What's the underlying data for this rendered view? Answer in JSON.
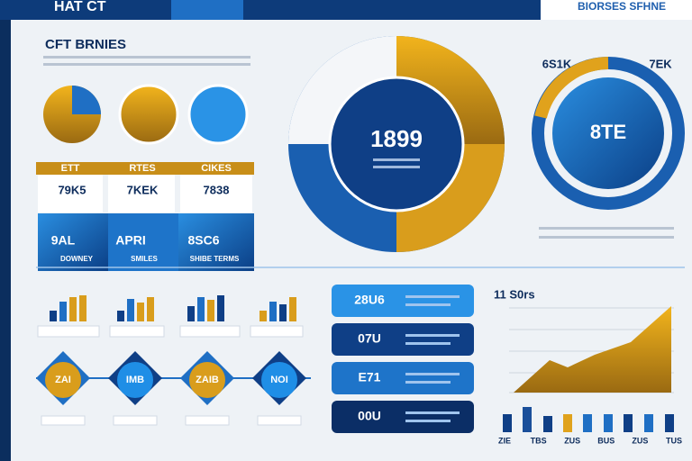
{
  "header": {
    "title": "HAT CT",
    "brand": "BIORSES SFHNE"
  },
  "left_panel": {
    "title": "CFT BRNIES",
    "cards": [
      {
        "label": "ETT",
        "value": "79K5",
        "stat": "9AL",
        "footer": "DOWNEY"
      },
      {
        "label": "RTES",
        "value": "7KEK",
        "stat": "APRI",
        "footer": "SMILES"
      },
      {
        "label": "CIKES",
        "value": "7838",
        "stat": "8SC6",
        "footer": "SHIBE TERMS"
      }
    ]
  },
  "center": {
    "value": "1899"
  },
  "right": {
    "left_label": "6S1K",
    "right_label": "7EK",
    "value": "8TE"
  },
  "steps": [
    "ZAI",
    "IMB",
    "ZAIB",
    "NOI"
  ],
  "pills": [
    "28U6",
    "07U",
    "E71",
    "00U"
  ],
  "trend": {
    "title": "11 S0rs",
    "x_labels": [
      "ZIE",
      "TBS",
      "ZUS",
      "BUS",
      "ZUS",
      "TUS"
    ]
  }
}
